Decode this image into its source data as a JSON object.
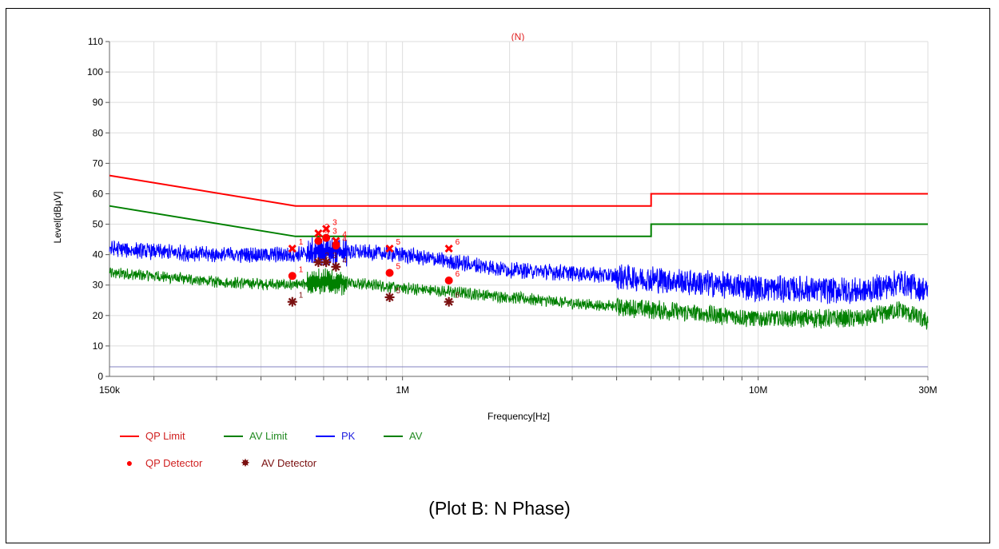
{
  "caption": "(Plot B: N Phase)",
  "chart_data": {
    "type": "line",
    "title": "(N)",
    "xlabel": "Frequency[Hz]",
    "ylabel": "Level[dBμV]",
    "x_scale": "log",
    "xlim": [
      150000,
      30000000
    ],
    "ylim": [
      0,
      110
    ],
    "grid": true,
    "y_ticks": [
      0,
      10,
      20,
      30,
      40,
      50,
      60,
      70,
      80,
      90,
      100,
      110
    ],
    "x_tick_labels": [
      {
        "value": 150000,
        "label": "150k"
      },
      {
        "value": 1000000,
        "label": "1M"
      },
      {
        "value": 10000000,
        "label": "10M"
      },
      {
        "value": 30000000,
        "label": "30M"
      }
    ],
    "colors": {
      "qp_limit": "#ff0000",
      "av_limit": "#008000",
      "pk": "#0000ff",
      "av": "#008000",
      "qp_detector": "#ff0000",
      "av_detector": "#7a1010"
    },
    "legend": {
      "placement": "bottom-left",
      "entries": [
        "QP Limit",
        "AV Limit",
        "PK",
        "AV",
        "QP Detector",
        "AV Detector"
      ]
    },
    "series": [
      {
        "name": "QP Limit",
        "x": [
          150000,
          500000,
          500000,
          5000000,
          5000000,
          30000000
        ],
        "values": [
          66,
          56,
          56,
          56,
          60,
          60
        ]
      },
      {
        "name": "AV Limit",
        "x": [
          150000,
          500000,
          500000,
          5000000,
          5000000,
          30000000
        ],
        "values": [
          56,
          46,
          46,
          46,
          50,
          50
        ]
      },
      {
        "name": "PK",
        "x": [
          150000,
          200000,
          300000,
          500000,
          700000,
          1000000,
          1300000,
          2000000,
          3000000,
          5000000,
          10000000,
          20000000,
          25000000,
          30000000
        ],
        "values": [
          42,
          41,
          40,
          40,
          41,
          40,
          38,
          35,
          34,
          32,
          29,
          28,
          31,
          28
        ]
      },
      {
        "name": "AV",
        "x": [
          150000,
          200000,
          300000,
          500000,
          700000,
          1000000,
          1300000,
          2000000,
          3000000,
          5000000,
          10000000,
          20000000,
          25000000,
          30000000
        ],
        "values": [
          34,
          33,
          31,
          30,
          31,
          29,
          28,
          26,
          24,
          22,
          19,
          19,
          22,
          18
        ]
      }
    ],
    "qp_detector": [
      {
        "marker": "1",
        "freq": 490000,
        "qp_peak": 42,
        "qp_value": 33
      },
      {
        "marker": "2",
        "freq": 580000,
        "qp_peak": 47,
        "qp_value": 44.5
      },
      {
        "marker": "3",
        "freq": 610000,
        "qp_peak": 48.5,
        "qp_value": 45.5
      },
      {
        "marker": "4",
        "freq": 650000,
        "qp_peak": 44.5,
        "qp_value": 43
      },
      {
        "marker": "5",
        "freq": 920000,
        "qp_peak": 42,
        "qp_value": 34
      },
      {
        "marker": "6",
        "freq": 1350000,
        "qp_peak": 42,
        "qp_value": 31.5
      }
    ],
    "av_detector": [
      {
        "marker": "1",
        "freq": 490000,
        "value": 24.5
      },
      {
        "marker": "2",
        "freq": 580000,
        "value": 37.5
      },
      {
        "marker": "3",
        "freq": 610000,
        "value": 37.5
      },
      {
        "marker": "4",
        "freq": 650000,
        "value": 36
      },
      {
        "marker": "5",
        "freq": 920000,
        "value": 26
      },
      {
        "marker": "6",
        "freq": 1350000,
        "value": 24.5
      }
    ]
  }
}
